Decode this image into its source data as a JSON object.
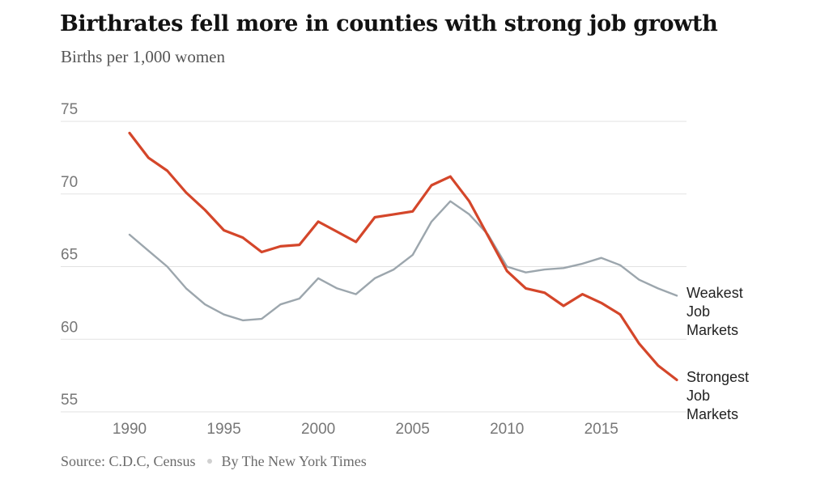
{
  "title": "Birthrates fell more in counties with strong job growth",
  "subtitle": "Births per 1,000 women",
  "source": "Source: C.D.C, Census",
  "credit": "By The New York Times",
  "colors": {
    "strongest": "#d4462a",
    "weakest": "#9ca6ad",
    "grid": "#e2e2e2"
  },
  "chart_data": {
    "type": "line",
    "title": "Birthrates fell more in counties with strong job growth",
    "ylabel": "Births per 1,000 women",
    "xlabel": "",
    "ylim": [
      55,
      75
    ],
    "xlim": [
      1990,
      2019
    ],
    "yticks": [
      75,
      70,
      65,
      60,
      55
    ],
    "xticks": [
      1990,
      1995,
      2000,
      2005,
      2010,
      2015
    ],
    "grid": true,
    "x": [
      1990,
      1991,
      1992,
      1993,
      1994,
      1995,
      1996,
      1997,
      1998,
      1999,
      2000,
      2001,
      2002,
      2003,
      2004,
      2005,
      2006,
      2007,
      2008,
      2009,
      2010,
      2011,
      2012,
      2013,
      2014,
      2015,
      2016,
      2017,
      2018,
      2019
    ],
    "series": [
      {
        "name": "Weakest Job Markets",
        "label_lines": [
          "Weakest",
          "Job",
          "Markets"
        ],
        "color": "#9ca6ad",
        "values": [
          67.2,
          66.1,
          65.0,
          63.5,
          62.4,
          61.7,
          61.3,
          61.4,
          62.4,
          62.8,
          64.2,
          63.5,
          63.1,
          64.2,
          64.8,
          65.8,
          68.1,
          69.5,
          68.6,
          67.2,
          65.0,
          64.6,
          64.8,
          64.9,
          65.2,
          65.6,
          65.1,
          64.1,
          63.5,
          63.0
        ]
      },
      {
        "name": "Strongest Job Markets",
        "label_lines": [
          "Strongest",
          "Job",
          "Markets"
        ],
        "color": "#d4462a",
        "values": [
          74.2,
          72.5,
          71.6,
          70.1,
          68.9,
          67.5,
          67.0,
          66.0,
          66.4,
          66.5,
          68.1,
          67.4,
          66.7,
          68.4,
          68.6,
          68.8,
          70.6,
          71.2,
          69.5,
          67.1,
          64.7,
          63.5,
          63.2,
          62.3,
          63.1,
          62.5,
          61.7,
          59.7,
          58.2,
          57.2
        ]
      }
    ]
  }
}
